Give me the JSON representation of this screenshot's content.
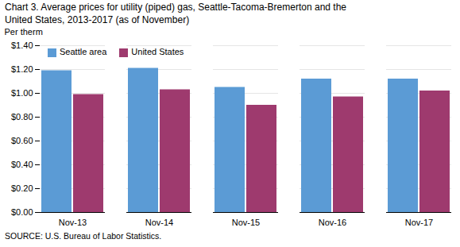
{
  "chart_data": {
    "type": "bar",
    "title": "Chart 3. Average prices for utility (piped) gas, Seattle-Tacoma-Bremerton and the\nUnited States, 2013-2017  (as of November)",
    "ylabel": "Per therm",
    "caption": "SOURCE: U.S. Bureau of Labor Statistics.",
    "categories": [
      "Nov-13",
      "Nov-14",
      "Nov-15",
      "Nov-16",
      "Nov-17"
    ],
    "series": [
      {
        "name": "Seattle area",
        "color": "#5B9BD5",
        "values": [
          1.19,
          1.21,
          1.05,
          1.12,
          1.12
        ]
      },
      {
        "name": "United States",
        "color": "#9E3A6E",
        "values": [
          0.99,
          1.03,
          0.9,
          0.97,
          1.02
        ]
      }
    ],
    "ylim": [
      0,
      1.4
    ],
    "yticks": [
      {
        "value": 0,
        "label": "$0.00"
      },
      {
        "value": 0.2,
        "label": "$0.20"
      },
      {
        "value": 0.4,
        "label": "$0.40"
      },
      {
        "value": 0.6,
        "label": "$0.60"
      },
      {
        "value": 0.8,
        "label": "$0.80"
      },
      {
        "value": 1.0,
        "label": "$1.00"
      },
      {
        "value": 1.2,
        "label": "$1.20"
      },
      {
        "value": 1.4,
        "label": "$1.40"
      }
    ],
    "grid": true,
    "legend": "upper left"
  }
}
